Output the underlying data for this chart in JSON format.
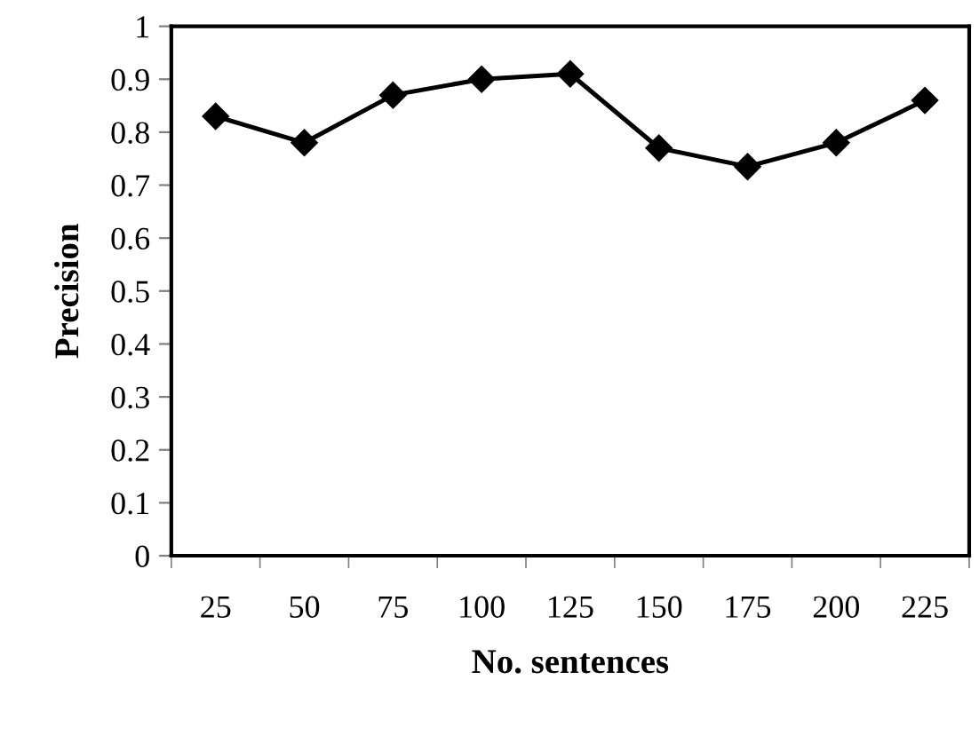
{
  "chart_data": {
    "type": "line",
    "xlabel": "No. sentences",
    "ylabel": "Precision",
    "categories": [
      "25",
      "50",
      "75",
      "100",
      "125",
      "150",
      "175",
      "200",
      "225"
    ],
    "series": [
      {
        "color": "#000000",
        "values": [
          0.83,
          0.78,
          0.87,
          0.9,
          0.91,
          0.77,
          0.735,
          0.78,
          0.86
        ]
      }
    ],
    "ylim": [
      0,
      1
    ],
    "yticks": [
      0,
      0.1,
      0.2,
      0.3,
      0.4,
      0.5,
      0.6,
      0.7,
      0.8,
      0.9,
      1
    ],
    "marker": "diamond",
    "line_style": "solid",
    "grid": false,
    "legend": false
  }
}
